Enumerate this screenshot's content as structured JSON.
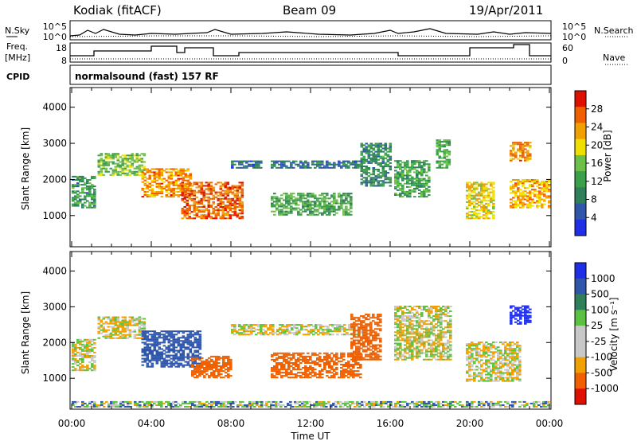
{
  "header": {
    "station": "Kodiak (fitACF)",
    "beam": "Beam 09",
    "date": "19/Apr/2011"
  },
  "side_labels": {
    "nsky": "N.Sky",
    "nsearch": "N.Search",
    "freq": "Freq.",
    "freq_unit": "[MHz]",
    "nave": "Nave",
    "cpid": "CPID",
    "cpid_value": "normalsound (fast) 157 RF"
  },
  "noise_axis_ticks": [
    "10^5",
    "10^0"
  ],
  "freq_axis_ticks": [
    "18",
    "8"
  ],
  "nave_axis_ticks": [
    "60",
    "0"
  ],
  "colors": {
    "power_scale": [
      "#1f2fe6",
      "#2f56a8",
      "#2f7f5a",
      "#3ca04a",
      "#6cc04a",
      "#f0e000",
      "#f0a000",
      "#f06000",
      "#e01000"
    ],
    "velocity_scale": [
      "#1f2fe6",
      "#2f56a8",
      "#2f7f5a",
      "#5cc040",
      "#c8c8c8",
      "#c8c8c8",
      "#f0a000",
      "#f06000",
      "#e01000"
    ]
  },
  "chart_data": [
    {
      "type": "heatmap",
      "panel": "power",
      "ylabel": "Slant Range [km]",
      "ylim": [
        180,
        4500
      ],
      "yticks": [
        "1000",
        "2000",
        "3000",
        "4000"
      ],
      "xlabel": "Time UT",
      "xticks": [
        "00:00",
        "04:00",
        "08:00",
        "12:00",
        "16:00",
        "20:00",
        "00:00"
      ],
      "colorbar_label": "Power [dB]",
      "colorbar_ticks": [
        "4",
        "8",
        "12",
        "16",
        "20",
        "24",
        "28"
      ],
      "regions": [
        {
          "t0": 0.0,
          "t1": 1.2,
          "r0": 1200,
          "r1": 2100,
          "v": 10
        },
        {
          "t0": 1.3,
          "t1": 3.6,
          "r0": 2100,
          "r1": 2700,
          "v": 14
        },
        {
          "t0": 3.5,
          "t1": 6.0,
          "r0": 1500,
          "r1": 2300,
          "v": 22
        },
        {
          "t0": 5.5,
          "t1": 8.5,
          "r0": 900,
          "r1": 1900,
          "v": 24
        },
        {
          "t0": 8.0,
          "t1": 9.5,
          "r0": 2300,
          "r1": 2500,
          "v": 6
        },
        {
          "t0": 10.0,
          "t1": 14.5,
          "r0": 2300,
          "r1": 2500,
          "v": 7
        },
        {
          "t0": 10.0,
          "t1": 14.0,
          "r0": 1000,
          "r1": 1600,
          "v": 12
        },
        {
          "t0": 14.5,
          "t1": 16.0,
          "r0": 1800,
          "r1": 3000,
          "v": 9
        },
        {
          "t0": 16.2,
          "t1": 18.0,
          "r0": 1500,
          "r1": 2500,
          "v": 11
        },
        {
          "t0": 18.3,
          "t1": 19.0,
          "r0": 2300,
          "r1": 3100,
          "v": 12
        },
        {
          "t0": 19.8,
          "t1": 21.2,
          "r0": 900,
          "r1": 1900,
          "v": 18
        },
        {
          "t0": 22.0,
          "t1": 23.0,
          "r0": 2500,
          "r1": 3000,
          "v": 22
        },
        {
          "t0": 22.0,
          "t1": 24.0,
          "r0": 1200,
          "r1": 2000,
          "v": 20
        }
      ]
    },
    {
      "type": "heatmap",
      "panel": "velocity",
      "ylabel": "Slant Range [km]",
      "ylim": [
        180,
        4500
      ],
      "yticks": [
        "1000",
        "2000",
        "3000",
        "4000"
      ],
      "xlabel": "Time UT",
      "xticks": [
        "00:00",
        "04:00",
        "08:00",
        "12:00",
        "16:00",
        "20:00",
        "00:00"
      ],
      "colorbar_label": "Velocity [m s⁻¹]",
      "colorbar_ticks": [
        "1000",
        "500",
        "100",
        "25",
        "-25",
        "-100",
        "-500",
        "-1000"
      ],
      "regions": [
        {
          "t0": 0.0,
          "t1": 1.2,
          "r0": 1200,
          "r1": 2100,
          "v": 0
        },
        {
          "t0": 1.3,
          "t1": 3.6,
          "r0": 2100,
          "r1": 2700,
          "v": 0
        },
        {
          "t0": 3.5,
          "t1": 6.5,
          "r0": 1300,
          "r1": 2300,
          "v": 200
        },
        {
          "t0": 6.0,
          "t1": 8.0,
          "r0": 1000,
          "r1": 1600,
          "v": -300
        },
        {
          "t0": 8.0,
          "t1": 14.5,
          "r0": 2200,
          "r1": 2500,
          "v": 0
        },
        {
          "t0": 10.0,
          "t1": 14.5,
          "r0": 1000,
          "r1": 1700,
          "v": -400
        },
        {
          "t0": 14.0,
          "t1": 15.5,
          "r0": 1500,
          "r1": 2800,
          "v": -300
        },
        {
          "t0": 16.2,
          "t1": 19.0,
          "r0": 1500,
          "r1": 3000,
          "v": 0
        },
        {
          "t0": 19.8,
          "t1": 22.5,
          "r0": 900,
          "r1": 2000,
          "v": 0
        },
        {
          "t0": 22.0,
          "t1": 23.0,
          "r0": 2500,
          "r1": 3000,
          "v": 800
        },
        {
          "t0": 0.0,
          "t1": 24.0,
          "r0": 180,
          "r1": 350,
          "v": 50
        }
      ]
    }
  ]
}
